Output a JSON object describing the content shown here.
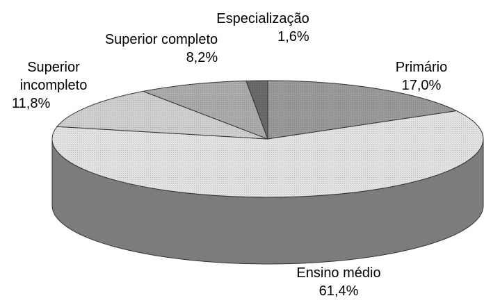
{
  "chart_data": {
    "type": "pie",
    "categories": [
      "Primário",
      "Ensino médio",
      "Superior incompleto",
      "Superior completo",
      "Especialização"
    ],
    "values": [
      17.0,
      61.4,
      11.8,
      8.2,
      1.6
    ],
    "value_labels": [
      "17,0%",
      "61,4%",
      "11,8%",
      "8,2%",
      "1,6%"
    ],
    "colors": [
      "#9a9a9a",
      "#e2e2e2",
      "#cfcfcf",
      "#ababab",
      "#6a6a6a"
    ]
  }
}
